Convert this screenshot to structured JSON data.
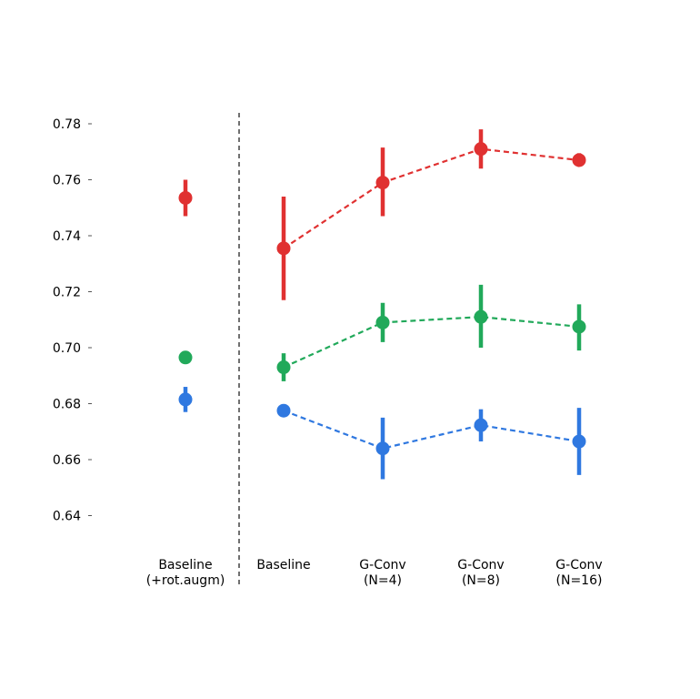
{
  "chart_data": {
    "type": "scatter",
    "title": "",
    "xlabel": "",
    "ylabel": "",
    "ylim": [
      0.63,
      0.78
    ],
    "yticks": [
      0.64,
      0.66,
      0.68,
      0.7,
      0.72,
      0.74,
      0.76,
      0.78
    ],
    "ytick_labels": [
      "0.64",
      "0.66",
      "0.68",
      "0.70",
      "0.72",
      "0.74",
      "0.76",
      "0.78"
    ],
    "categories": [
      {
        "line1": "Baseline",
        "line2": "(+rot.augm)"
      },
      {
        "line1": "Baseline",
        "line2": ""
      },
      {
        "line1": "G-Conv",
        "line2": "(N=4)"
      },
      {
        "line1": "G-Conv",
        "line2": "(N=8)"
      },
      {
        "line1": "G-Conv",
        "line2": "(N=16)"
      }
    ],
    "separator_after_category": 0,
    "grid": false,
    "legend": false,
    "series": [
      {
        "color": "#e03131",
        "values": [
          0.7535,
          0.7355,
          0.759,
          0.771,
          0.767
        ],
        "err_low": [
          0.747,
          0.717,
          0.747,
          0.764,
          0.765
        ],
        "err_high": [
          0.76,
          0.754,
          0.7715,
          0.778,
          0.7695
        ]
      },
      {
        "color": "#21a95a",
        "values": [
          0.6965,
          0.693,
          0.709,
          0.711,
          0.7075
        ],
        "err_low": [
          0.6965,
          0.688,
          0.702,
          0.7,
          0.699
        ],
        "err_high": [
          0.6965,
          0.698,
          0.716,
          0.7225,
          0.7155
        ]
      },
      {
        "color": "#2f78e0",
        "values": [
          0.6815,
          0.6775,
          0.664,
          0.6723,
          0.6665
        ],
        "err_low": [
          0.677,
          0.6775,
          0.653,
          0.6665,
          0.6545
        ],
        "err_high": [
          0.686,
          0.6775,
          0.675,
          0.678,
          0.6785
        ]
      }
    ]
  }
}
